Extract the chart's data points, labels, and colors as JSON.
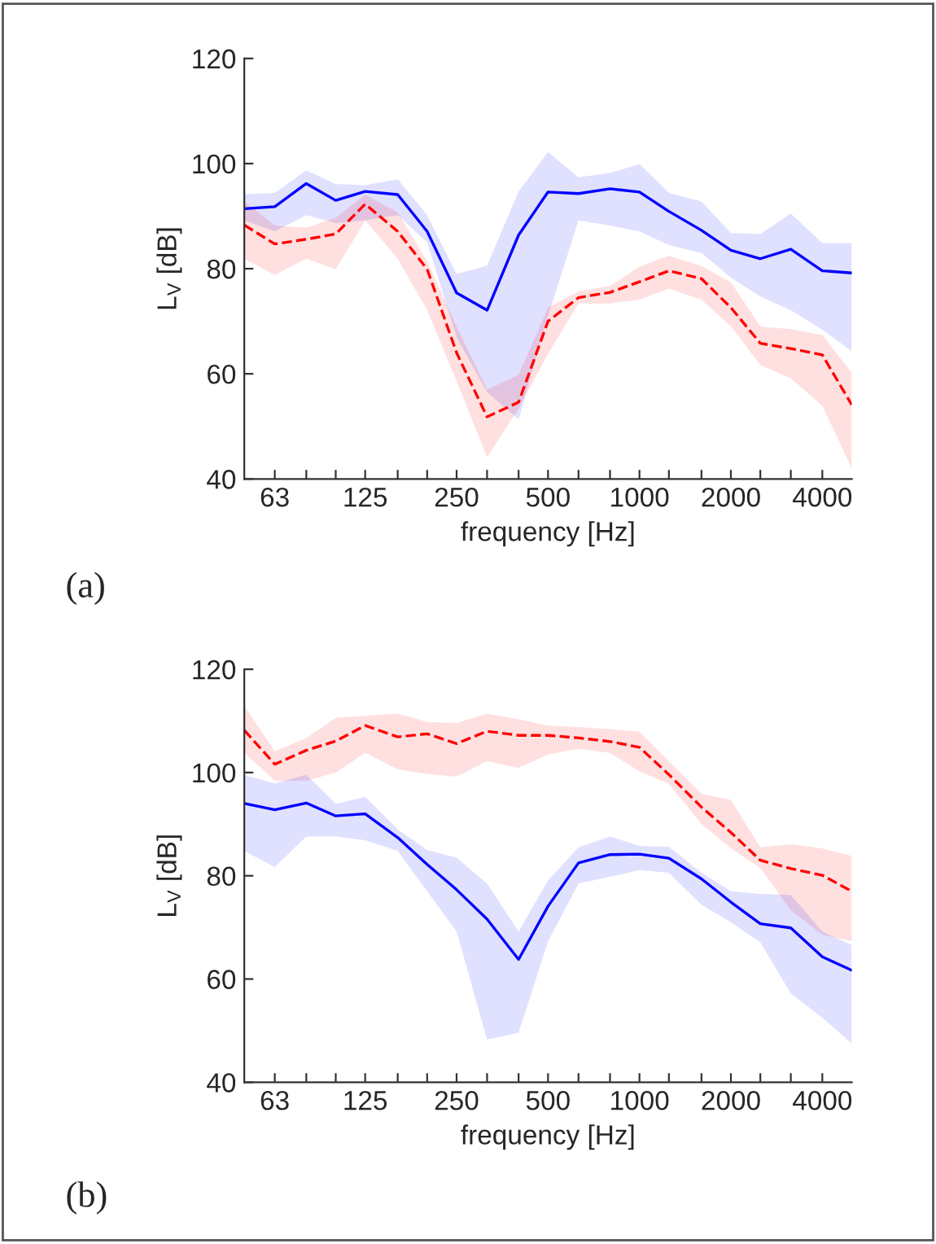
{
  "chart_data": [
    {
      "type": "line",
      "xlabel": "frequency [Hz]",
      "ylabel": "L$_{V}$ [dB]",
      "annotations": [
        "(a)"
      ],
      "log": "x",
      "grid": false,
      "xlim": [
        50,
        5000
      ],
      "ylim": [
        40,
        120
      ],
      "yticks": [
        40,
        60,
        80,
        100,
        120
      ],
      "xticks": [
        {
          "value": 63,
          "label": "63"
        },
        {
          "value": 80,
          "label": null
        },
        {
          "value": 100,
          "label": null
        },
        {
          "value": 125,
          "label": "125"
        },
        {
          "value": 160,
          "label": null
        },
        {
          "value": 200,
          "label": null
        },
        {
          "value": 250,
          "label": "250"
        },
        {
          "value": 315,
          "label": null
        },
        {
          "value": 400,
          "label": null
        },
        {
          "value": 500,
          "label": "500"
        },
        {
          "value": 630,
          "label": null
        },
        {
          "value": 800,
          "label": null
        },
        {
          "value": 1000,
          "label": "1000"
        },
        {
          "value": 1250,
          "label": null
        },
        {
          "value": 1600,
          "label": null
        },
        {
          "value": 2000,
          "label": "2000"
        },
        {
          "value": 2500,
          "label": null
        },
        {
          "value": 3150,
          "label": null
        },
        {
          "value": 4000,
          "label": "4000"
        }
      ],
      "x": [
        50,
        63,
        80,
        100,
        125,
        160,
        200,
        250,
        315,
        400,
        500,
        630,
        800,
        1000,
        1250,
        1600,
        2000,
        2500,
        3150,
        4000,
        5000
      ],
      "series": [
        {
          "color": "#0000ff",
          "line_style": "solid",
          "values": [
            91.4,
            91.8,
            96.2,
            93.0,
            94.7,
            94.1,
            87.1,
            75.4,
            72.1,
            86.4,
            94.6,
            94.3,
            95.2,
            94.6,
            90.9,
            87.3,
            83.5,
            81.9,
            83.7,
            79.6,
            79.2
          ],
          "upper": [
            94.2,
            94.4,
            98.7,
            96.1,
            95.9,
            97.0,
            90.2,
            79.0,
            80.6,
            94.7,
            102.2,
            97.4,
            98.2,
            99.9,
            94.4,
            92.8,
            86.8,
            86.6,
            90.5,
            84.9,
            84.9
          ],
          "lower": [
            89.2,
            87.1,
            90.2,
            88.7,
            89.2,
            90.2,
            85.0,
            66.9,
            56.5,
            51.3,
            71.0,
            89.2,
            88.2,
            87.1,
            84.5,
            83.0,
            78.3,
            74.7,
            72.1,
            68.4,
            64.3
          ]
        },
        {
          "color": "#ff0000",
          "line_style": "dashed",
          "values": [
            88.3,
            84.7,
            85.6,
            86.6,
            92.3,
            87.1,
            79.9,
            64.0,
            51.8,
            54.6,
            70.0,
            74.5,
            75.5,
            77.5,
            79.6,
            78.1,
            72.6,
            65.8,
            64.8,
            63.6,
            54.1
          ],
          "upper": [
            92.8,
            88.2,
            87.8,
            89.7,
            94.1,
            90.7,
            81.4,
            69.0,
            57.0,
            59.8,
            72.6,
            75.7,
            76.7,
            80.4,
            82.5,
            80.5,
            77.4,
            69.0,
            68.5,
            67.4,
            60.2
          ],
          "lower": [
            81.9,
            78.8,
            81.9,
            79.9,
            89.2,
            81.9,
            72.1,
            58.6,
            44.1,
            53.4,
            63.8,
            73.4,
            73.4,
            74.1,
            76.2,
            74.1,
            69.0,
            61.7,
            59.1,
            53.9,
            42.0
          ]
        }
      ]
    },
    {
      "type": "line",
      "xlabel": "frequency [Hz]",
      "ylabel": "L$_{V}$ [dB]",
      "annotations": [
        "(b)"
      ],
      "log": "x",
      "grid": false,
      "xlim": [
        50,
        5000
      ],
      "ylim": [
        40,
        120
      ],
      "yticks": [
        40,
        60,
        80,
        100,
        120
      ],
      "xticks": [
        {
          "value": 63,
          "label": "63"
        },
        {
          "value": 80,
          "label": null
        },
        {
          "value": 100,
          "label": null
        },
        {
          "value": 125,
          "label": "125"
        },
        {
          "value": 160,
          "label": null
        },
        {
          "value": 200,
          "label": null
        },
        {
          "value": 250,
          "label": "250"
        },
        {
          "value": 315,
          "label": null
        },
        {
          "value": 400,
          "label": null
        },
        {
          "value": 500,
          "label": "500"
        },
        {
          "value": 630,
          "label": null
        },
        {
          "value": 800,
          "label": null
        },
        {
          "value": 1000,
          "label": "1000"
        },
        {
          "value": 1250,
          "label": null
        },
        {
          "value": 1600,
          "label": null
        },
        {
          "value": 2000,
          "label": "2000"
        },
        {
          "value": 2500,
          "label": null
        },
        {
          "value": 3150,
          "label": null
        },
        {
          "value": 4000,
          "label": "4000"
        }
      ],
      "x": [
        50,
        63,
        80,
        100,
        125,
        160,
        200,
        250,
        315,
        400,
        500,
        630,
        800,
        1000,
        1250,
        1600,
        2000,
        2500,
        3150,
        4000,
        5000
      ],
      "series": [
        {
          "color": "#ff0000",
          "line_style": "dashed",
          "values": [
            108.2,
            101.6,
            104.3,
            106.1,
            109.1,
            106.9,
            107.5,
            105.6,
            108.0,
            107.2,
            107.2,
            106.7,
            106.0,
            104.9,
            99.6,
            93.3,
            88.4,
            83.0,
            81.4,
            80.1,
            77.0
          ],
          "upper": [
            112.9,
            104.1,
            106.7,
            110.6,
            111.0,
            111.4,
            109.8,
            109.6,
            111.4,
            110.3,
            109.1,
            108.8,
            108.4,
            107.9,
            102.2,
            95.9,
            94.7,
            85.5,
            86.1,
            85.3,
            83.8
          ],
          "lower": [
            103.8,
            98.4,
            98.4,
            100.0,
            103.8,
            100.6,
            99.7,
            99.2,
            102.2,
            100.9,
            103.5,
            104.6,
            103.8,
            100.2,
            97.8,
            90.0,
            85.3,
            81.5,
            73.3,
            68.6,
            67.3
          ]
        },
        {
          "color": "#0000ff",
          "line_style": "solid",
          "values": [
            94.0,
            92.8,
            94.1,
            91.6,
            92.0,
            87.4,
            82.2,
            77.3,
            71.6,
            63.8,
            74.1,
            82.5,
            84.1,
            84.2,
            83.4,
            79.4,
            74.9,
            70.7,
            69.9,
            64.3,
            61.7
          ],
          "upper": [
            99.5,
            97.9,
            99.6,
            93.9,
            95.3,
            89.0,
            85.0,
            83.5,
            78.5,
            69.2,
            79.1,
            85.5,
            87.6,
            85.8,
            85.6,
            80.6,
            77.0,
            76.5,
            76.3,
            69.2,
            66.6
          ],
          "lower": [
            84.8,
            81.7,
            87.6,
            87.6,
            86.9,
            84.8,
            77.0,
            69.2,
            48.3,
            49.6,
            67.3,
            78.5,
            79.8,
            81.1,
            80.6,
            74.4,
            71.0,
            67.1,
            57.2,
            52.5,
            47.5
          ]
        }
      ]
    }
  ]
}
